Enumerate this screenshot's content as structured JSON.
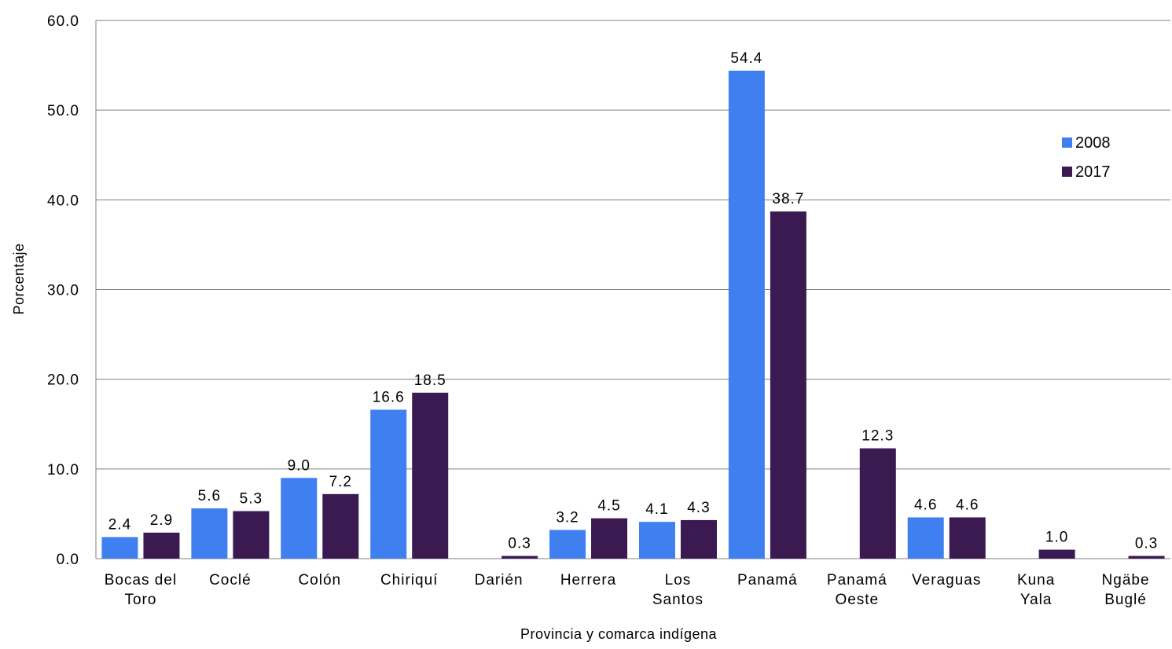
{
  "chart_data": {
    "type": "bar",
    "xlabel": "Provincia  y comarca indígena",
    "ylabel": "Porcentaje",
    "ylim": [
      0,
      60
    ],
    "yticks": [
      "0.0",
      "10.0",
      "20.0",
      "30.0",
      "40.0",
      "50.0",
      "60.0"
    ],
    "grid": true,
    "legend_position": "right",
    "categories": [
      [
        "Bocas del",
        "Toro"
      ],
      [
        "Coclé"
      ],
      [
        "Colón"
      ],
      [
        "Chiriquí"
      ],
      [
        "Darién"
      ],
      [
        "Herrera"
      ],
      [
        "Los",
        "Santos"
      ],
      [
        "Panamá"
      ],
      [
        "Panamá",
        "Oeste"
      ],
      [
        "Veraguas"
      ],
      [
        "Kuna",
        "Yala"
      ],
      [
        "Ngäbe",
        "Buglé"
      ]
    ],
    "series": [
      {
        "name": "2008",
        "color": "#3f7ff0",
        "values": [
          2.4,
          5.6,
          9.0,
          16.6,
          null,
          3.2,
          4.1,
          54.4,
          null,
          4.6,
          null,
          null
        ],
        "labels": [
          "2.4",
          "5.6",
          "9.0",
          "16.6",
          "",
          "3.2",
          "4.1",
          "54.4",
          "",
          "4.6",
          "",
          ""
        ]
      },
      {
        "name": "2017",
        "color": "#3b1a52",
        "values": [
          2.9,
          5.3,
          7.2,
          18.5,
          0.3,
          4.5,
          4.3,
          38.7,
          12.3,
          4.6,
          1.0,
          0.3
        ],
        "labels": [
          "2.9",
          "5.3",
          "7.2",
          "18.5",
          "0.3",
          "4.5",
          "4.3",
          "38.7",
          "12.3",
          "4.6",
          "1.0",
          "0.3"
        ]
      }
    ]
  }
}
